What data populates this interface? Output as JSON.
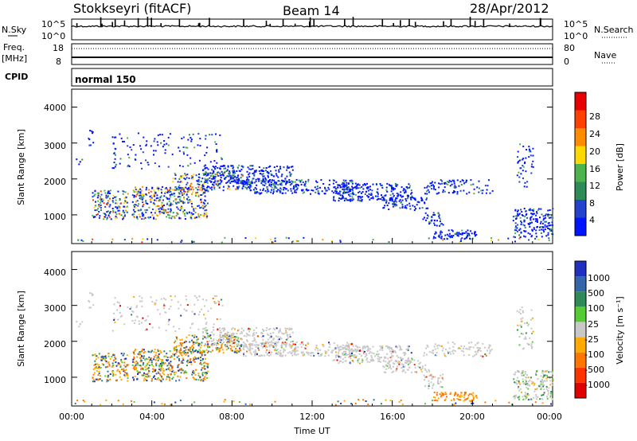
{
  "header": {
    "station": "Stokkseyri (fitACF)",
    "beam": "Beam 14",
    "date": "28/Apr/2012"
  },
  "sky_panel": {
    "left_label": "N.Sky",
    "left_ticks": [
      "10^5",
      "10^0"
    ],
    "right_ticks": [
      "10^5",
      "10^0"
    ],
    "right_label": "N.Search"
  },
  "freq_panel": {
    "left_label_top": "Freq.",
    "left_label_unit": "[MHz]",
    "left_ticks": [
      "18",
      "8"
    ],
    "right_ticks": [
      "80",
      "0"
    ],
    "right_label": "Nave"
  },
  "cpid_panel": {
    "label": "CPID",
    "mode": "normal 150"
  },
  "power_panel": {
    "ylabel": "Slant Range [km]",
    "yticks": [
      "4000",
      "3000",
      "2000",
      "1000"
    ],
    "colorbar_label": "Power [dB]",
    "colorbar_ticks": [
      "28",
      "24",
      "20",
      "16",
      "12",
      "8",
      "4"
    ],
    "colors": [
      "#0014ff",
      "#2244cc",
      "#2d8b57",
      "#4db34d",
      "#ffd800",
      "#ff8c00",
      "#ff4000",
      "#e80000"
    ]
  },
  "velocity_panel": {
    "ylabel": "Slant Range [km]",
    "yticks": [
      "4000",
      "3000",
      "2000",
      "1000"
    ],
    "colorbar_label": "Velocity [m s⁻¹]",
    "colorbar_ticks": [
      "1000",
      "500",
      "100",
      "25",
      "-25",
      "-100",
      "-500",
      "-1000"
    ],
    "colors": [
      "#2030c0",
      "#3366aa",
      "#2e8b57",
      "#55cc33",
      "#c8c8c8",
      "#ffaa00",
      "#ff7700",
      "#ff3300",
      "#e00000"
    ]
  },
  "time_axis": {
    "ticks": [
      "00:00",
      "04:00",
      "08:00",
      "12:00",
      "16:00",
      "20:00",
      "00:00"
    ],
    "label": "Time UT"
  }
}
